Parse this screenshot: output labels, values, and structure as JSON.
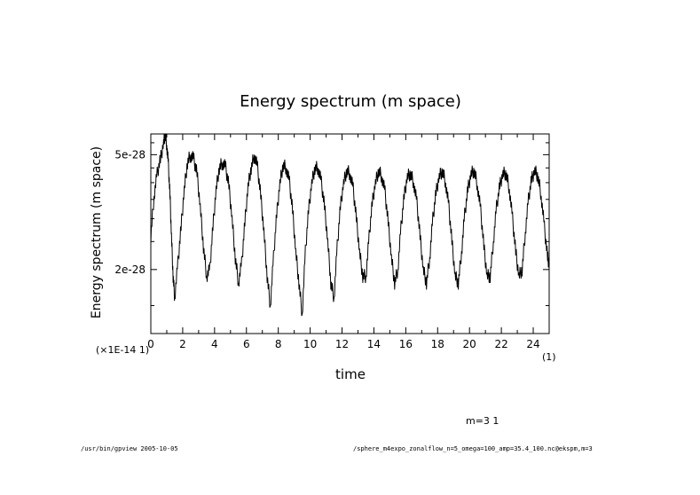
{
  "chart_data": {
    "type": "line",
    "title": "Energy spectrum (m space)",
    "xlabel": "time",
    "ylabel": "Energy spectrum (m space)",
    "x_scale_label": "(×1E-14 1)",
    "x_unit_label": "(1)",
    "xlim": [
      0,
      25
    ],
    "ylim": [
      1.2e-28,
      5.9e-28
    ],
    "ylog": true,
    "x_ticks": [
      0,
      2,
      4,
      6,
      8,
      10,
      12,
      14,
      16,
      18,
      20,
      22,
      24
    ],
    "x_tick_labels": [
      "0",
      "2",
      "4",
      "6",
      "8",
      "10",
      "12",
      "14",
      "16",
      "18",
      "20",
      "22",
      "24"
    ],
    "y_ticks": [
      5e-28,
      2e-28
    ],
    "y_tick_labels": [
      "5e-28",
      "2e-28"
    ],
    "series": [
      {
        "name": "m=3 1",
        "x": [
          0,
          0.2,
          0.4,
          0.6,
          0.8,
          0.9,
          1.0,
          1.1,
          1.2,
          1.3,
          1.4,
          1.5,
          1.7,
          1.9,
          2.1,
          2.3,
          2.5,
          2.7,
          2.9,
          3.1,
          3.3,
          3.5,
          3.7,
          3.9,
          4.1,
          4.3,
          4.5,
          4.7,
          4.9,
          5.1,
          5.3,
          5.5,
          5.7,
          5.9,
          6.1,
          6.3,
          6.5,
          6.7,
          6.9,
          7.1,
          7.3,
          7.5,
          7.7,
          7.9,
          8.1,
          8.3,
          8.5,
          8.7,
          8.9,
          9.1,
          9.3,
          9.5,
          9.7,
          9.9,
          10.1,
          10.3,
          10.5,
          10.7,
          10.9,
          11.1,
          11.3,
          11.5,
          11.7,
          11.9,
          12.1,
          12.3,
          12.5,
          12.7,
          12.9,
          13.1,
          13.3,
          13.5,
          13.7,
          13.9,
          14.1,
          14.3,
          14.5,
          14.7,
          14.9,
          15.1,
          15.3,
          15.5,
          15.7,
          15.9,
          16.1,
          16.3,
          16.5,
          16.7,
          16.9,
          17.1,
          17.3,
          17.5,
          17.7,
          17.9,
          18.1,
          18.3,
          18.5,
          18.7,
          18.9,
          19.1,
          19.3,
          19.5,
          19.7,
          19.9,
          20.1,
          20.3,
          20.5,
          20.7,
          20.9,
          21.1,
          21.3,
          21.5,
          21.7,
          21.9,
          22.1,
          22.3,
          22.5,
          22.7,
          22.9,
          23.1,
          23.3,
          23.5,
          23.7,
          23.9,
          24.1,
          24.3,
          24.5,
          24.7,
          24.9,
          25.0
        ],
        "values": [
          2.6e-28,
          3.6e-28,
          4.3e-28,
          4.8e-28,
          5.5e-28,
          5.9e-28,
          5.4e-28,
          4.6e-28,
          3.6e-28,
          2.6e-28,
          1.9e-28,
          1.6e-28,
          2.1e-28,
          2.8e-28,
          3.8e-28,
          4.7e-28,
          5e-28,
          4.8e-28,
          4.3e-28,
          3.3e-28,
          2.4e-28,
          1.9e-28,
          2e-28,
          2.8e-28,
          3.8e-28,
          4.5e-28,
          4.7e-28,
          4.5e-28,
          3.9e-28,
          3e-28,
          2.2e-28,
          1.8e-28,
          2.1e-28,
          2.9e-28,
          3.9e-28,
          4.5e-28,
          5e-28,
          4.5e-28,
          3.6e-28,
          2.7e-28,
          1.9e-28,
          1.5e-28,
          2.2e-28,
          3.1e-28,
          4e-28,
          4.6e-28,
          4.5e-28,
          4e-28,
          3.2e-28,
          2.3e-28,
          1.8e-28,
          1.4e-28,
          2.3e-28,
          3.2e-28,
          4e-28,
          4.5e-28,
          4.5e-28,
          4e-28,
          3.3e-28,
          2.5e-28,
          1.8e-28,
          1.6e-28,
          2.4e-28,
          3.3e-28,
          4e-28,
          4.4e-28,
          4.3e-28,
          3.8e-28,
          3e-28,
          2.3e-28,
          1.9e-28,
          1.9e-28,
          2.6e-28,
          3.4e-28,
          4e-28,
          4.4e-28,
          4.2e-28,
          3.7e-28,
          2.9e-28,
          2.2e-28,
          1.8e-28,
          2e-28,
          2.8e-28,
          3.6e-28,
          4.2e-28,
          4.3e-28,
          4e-28,
          3.4e-28,
          2.6e-28,
          2e-28,
          1.8e-28,
          2.2e-28,
          3e-28,
          3.7e-28,
          4.2e-28,
          4.4e-28,
          4e-28,
          3.3e-28,
          2.5e-28,
          1.9e-28,
          1.8e-28,
          2.3e-28,
          3.1e-28,
          3.8e-28,
          4.3e-28,
          4.4e-28,
          3.9e-28,
          3.2e-28,
          2.4e-28,
          1.9e-28,
          1.9e-28,
          2.5e-28,
          3.3e-28,
          3.9e-28,
          4.3e-28,
          4.3e-28,
          3.8e-28,
          3e-28,
          2.3e-28,
          1.9e-28,
          2e-28,
          2.7e-28,
          3.5e-28,
          4.1e-28,
          4.4e-28,
          4.2e-28,
          3.6e-28,
          2.8e-28,
          2.2e-28,
          2.1e-28
        ]
      }
    ],
    "annotation": "m=3 1"
  },
  "footer": {
    "left": "/usr/bin/gpview  2005-10-05",
    "right": "/sphere_m4expo_zonalflow_n=5_omega=100_amp=35.4_100.nc@ekspm,m=3"
  }
}
